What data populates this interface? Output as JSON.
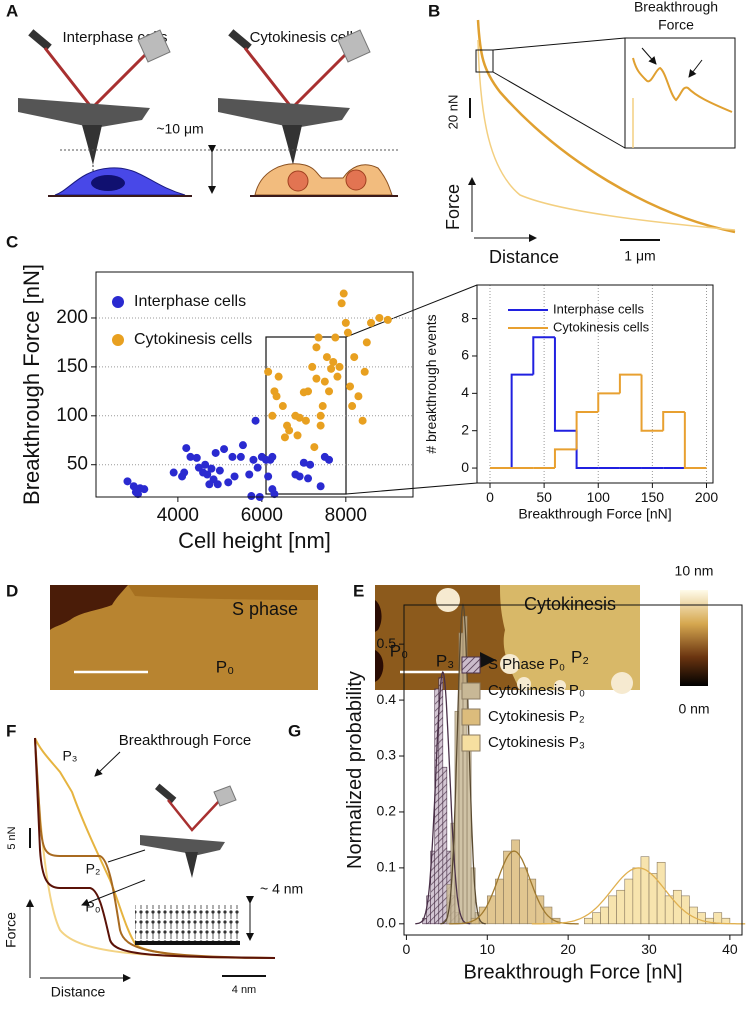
{
  "panel_labels": [
    "A",
    "B",
    "C",
    "D",
    "E",
    "F",
    "G"
  ],
  "panel_a": {
    "interphase": "Interphase cells",
    "cytokinesis": "Cytokinesis cells",
    "height": "~10 μm"
  },
  "panel_b": {
    "annotation": [
      "Breakthrough",
      "Force"
    ],
    "force_scale": "20 nN",
    "y_label": "Force",
    "x_label": "Distance",
    "distance_scale": "1 μm"
  },
  "panel_d": {
    "label": "S phase",
    "region": "P₀"
  },
  "panel_e": {
    "label": "Cytokinesis",
    "regions": [
      "P₀",
      "P₃",
      "P₂"
    ],
    "colorbar": [
      "10 nm",
      "0 nm"
    ]
  },
  "panel_f": {
    "annotation": "Breakthrough Force",
    "curve_labels": [
      "P₃",
      "P₂",
      "P₀"
    ],
    "force_scale": "5 nN",
    "y_label": "Force",
    "x_label": "Distance",
    "distance_scale": "4 nm",
    "thickness": "~ 4 nm"
  },
  "chart_data": [
    {
      "type": "scatter",
      "x_label": "Cell height [nm]",
      "y_label": "Breakthrough Force [nN]",
      "xlim": [
        2050,
        9600
      ],
      "ylim": [
        17,
        247
      ],
      "xticks": [
        4000,
        6000,
        8000
      ],
      "yticks": [
        50,
        100,
        150,
        200
      ],
      "grid": "y",
      "legend": "upper left",
      "series": [
        {
          "name": "Interphase cells",
          "color": "#2a2ad0",
          "x": [
            2800,
            2950,
            3000,
            3100,
            3050,
            3200,
            3900,
            4100,
            4200,
            4150,
            4300,
            4450,
            4500,
            4600,
            4650,
            4700,
            4750,
            4800,
            4850,
            4900,
            4950,
            5000,
            5100,
            5200,
            5300,
            5350,
            5500,
            5550,
            5700,
            5750,
            5800,
            5850,
            5900,
            5950,
            6000,
            6100,
            6150,
            6200,
            6250,
            6300,
            6250,
            6800,
            6900,
            7000,
            7100,
            7150,
            7400,
            7500,
            7600
          ],
          "y": [
            33,
            28,
            22,
            26,
            20,
            25,
            42,
            38,
            67,
            42,
            58,
            57,
            47,
            42,
            50,
            40,
            30,
            46,
            35,
            62,
            30,
            44,
            66,
            32,
            58,
            38,
            58,
            70,
            40,
            18,
            55,
            95,
            47,
            17,
            58,
            55,
            38,
            55,
            25,
            20,
            58,
            40,
            38,
            52,
            36,
            50,
            28,
            58,
            55
          ]
        },
        {
          "name": "Cytokinesis cells",
          "color": "#e8a020",
          "x": [
            6150,
            6250,
            6300,
            6350,
            6400,
            6500,
            6550,
            6600,
            6650,
            6800,
            6850,
            6900,
            7000,
            7050,
            7100,
            7200,
            7250,
            7300,
            7350,
            7400,
            7450,
            7500,
            7550,
            7600,
            7650,
            7700,
            7750,
            7800,
            7850,
            7900,
            7950,
            8000,
            8050,
            8100,
            8150,
            8200,
            8300,
            8400,
            8450,
            8500,
            8600,
            8800,
            9000,
            7400,
            7300
          ],
          "y": [
            145,
            100,
            125,
            120,
            140,
            110,
            78,
            90,
            85,
            100,
            80,
            98,
            124,
            95,
            125,
            150,
            68,
            138,
            180,
            90,
            110,
            135,
            160,
            125,
            148,
            155,
            180,
            140,
            150,
            215,
            225,
            195,
            185,
            130,
            110,
            160,
            120,
            95,
            145,
            175,
            195,
            200,
            198,
            100,
            170
          ]
        }
      ]
    },
    {
      "type": "step_histogram",
      "x_label": "Breakthrough Force [nN]",
      "y_label": "# breakthrough events",
      "xlim": [
        -12,
        206
      ],
      "ylim": [
        -0.8,
        9.8
      ],
      "xticks": [
        0,
        50,
        100,
        150,
        200
      ],
      "yticks": [
        0,
        2,
        4,
        6,
        8
      ],
      "grid": "x",
      "legend": "upper right",
      "bins": [
        0,
        20,
        40,
        60,
        80,
        100,
        120,
        140,
        160,
        180,
        200
      ],
      "series": [
        {
          "name": "Interphase cells",
          "color": "#2020e0",
          "values": [
            0,
            5,
            7,
            2,
            0,
            0,
            0,
            0,
            0,
            0
          ]
        },
        {
          "name": "Cytokinesis cells",
          "color": "#e8a030",
          "values": [
            0,
            0,
            0,
            1,
            3,
            4,
            5,
            2,
            3,
            0
          ]
        }
      ]
    },
    {
      "type": "histogram",
      "x_label": "Breakthrough Force [nN]",
      "y_label": "Normalized probability",
      "xlim": [
        -0.3,
        41.5
      ],
      "ylim": [
        -0.02,
        0.57
      ],
      "xticks": [
        0,
        10,
        20,
        30,
        40
      ],
      "yticks": [
        {
          "value": 0,
          "label": "0.0"
        },
        0.1,
        0.2,
        0.3,
        0.4,
        0.5
      ],
      "grid": "none",
      "legend": "upper right",
      "series": [
        {
          "name": "S Phase P₀",
          "color": "#4a3048",
          "hatched": true,
          "bins": [
            2,
            2.5,
            3,
            3.5,
            4,
            4.5,
            5,
            5.5,
            6,
            6.5,
            7
          ],
          "values": [
            0.01,
            0.05,
            0.13,
            0.42,
            0.44,
            0.28,
            0.13,
            0.05,
            0.02,
            0.01
          ],
          "fit": {
            "mean": 4.5,
            "sd": 0.85,
            "peak": 0.45
          }
        },
        {
          "name": "Cytokinesis P₀",
          "color": "#c8b896",
          "line_color": "#5a4a30",
          "bins": [
            5,
            5.5,
            6,
            6.5,
            7,
            7.5,
            8,
            8.5,
            9
          ],
          "values": [
            0.07,
            0.18,
            0.38,
            0.52,
            0.55,
            0.32,
            0.1,
            0.02
          ],
          "fit": {
            "mean": 7.0,
            "sd": 0.7,
            "peak": 0.57
          }
        },
        {
          "name": "Cytokinesis P₂",
          "color": "#dcbc7c",
          "line_color": "#a07a30",
          "bins": [
            8,
            9,
            10,
            11,
            12,
            13,
            14,
            15,
            16,
            17,
            18,
            19
          ],
          "values": [
            0.01,
            0.03,
            0.05,
            0.08,
            0.13,
            0.15,
            0.1,
            0.08,
            0.05,
            0.03,
            0.01
          ],
          "fit": {
            "mean": 13.3,
            "sd": 2.0,
            "peak": 0.13
          }
        },
        {
          "name": "Cytokinesis P₃",
          "color": "#f6dfa0",
          "line_color": "#e0b050",
          "bins": [
            22,
            23,
            24,
            25,
            26,
            27,
            28,
            29,
            30,
            31,
            32,
            33,
            34,
            35,
            36,
            37,
            38,
            39,
            40
          ],
          "values": [
            0.01,
            0.02,
            0.03,
            0.05,
            0.06,
            0.08,
            0.1,
            0.12,
            0.09,
            0.11,
            0.05,
            0.06,
            0.05,
            0.03,
            0.02,
            0.01,
            0.02,
            0.01
          ],
          "fit": {
            "mean": 28.7,
            "sd": 3.3,
            "peak": 0.1
          }
        }
      ]
    }
  ]
}
